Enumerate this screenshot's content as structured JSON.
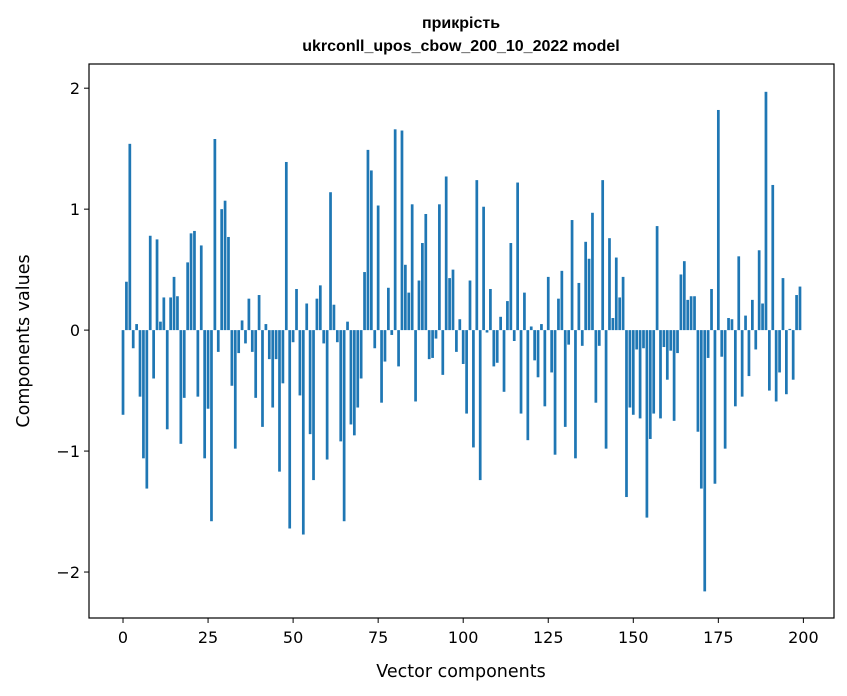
{
  "chart_data": {
    "type": "bar",
    "title": "прикрість",
    "subtitle": "ukrconll_upos_cbow_200_10_2022 model",
    "xlabel": "Vector components",
    "ylabel": "Components values",
    "xlim": [
      -10,
      209
    ],
    "ylim": [
      -2.38,
      2.2
    ],
    "x_ticks": [
      0,
      25,
      50,
      75,
      100,
      125,
      150,
      175,
      200
    ],
    "x_tick_labels": [
      "0",
      "25",
      "50",
      "75",
      "100",
      "125",
      "150",
      "175",
      "200"
    ],
    "y_ticks": [
      -2,
      -1,
      0,
      1,
      2
    ],
    "y_tick_labels": [
      "−2",
      "−1",
      "0",
      "1",
      "2"
    ],
    "grid": false,
    "bar_color": "#1f77b4",
    "values": [
      -0.7,
      0.4,
      1.54,
      -0.15,
      0.05,
      -0.55,
      -1.06,
      -1.31,
      0.78,
      -0.4,
      0.75,
      0.07,
      0.27,
      -0.82,
      0.27,
      0.44,
      0.28,
      -0.94,
      -0.56,
      0.56,
      0.8,
      0.82,
      -0.55,
      0.7,
      -1.06,
      -0.65,
      -1.58,
      1.58,
      -0.18,
      1.0,
      1.07,
      0.77,
      -0.46,
      -0.98,
      -0.19,
      0.08,
      -0.11,
      0.26,
      -0.18,
      -0.56,
      0.29,
      -0.8,
      0.05,
      -0.24,
      -0.64,
      -0.24,
      -1.17,
      -0.44,
      1.39,
      -1.64,
      -0.1,
      0.34,
      -0.54,
      -1.69,
      0.22,
      -0.86,
      -1.24,
      0.26,
      0.37,
      -0.11,
      -1.07,
      1.14,
      0.21,
      -0.1,
      -0.92,
      -1.58,
      0.07,
      -0.78,
      -0.87,
      -0.64,
      -0.4,
      0.48,
      1.49,
      1.32,
      -0.15,
      1.03,
      -0.6,
      -0.26,
      0.35,
      -0.04,
      1.66,
      -0.3,
      1.65,
      0.54,
      0.31,
      1.04,
      -0.59,
      0.41,
      0.72,
      0.96,
      -0.24,
      -0.23,
      -0.07,
      1.04,
      -0.37,
      1.27,
      0.43,
      0.5,
      -0.18,
      0.09,
      -0.28,
      -0.69,
      0.41,
      -0.97,
      1.24,
      -1.24,
      1.02,
      -0.02,
      0.34,
      -0.3,
      -0.27,
      0.11,
      -0.51,
      0.24,
      0.72,
      -0.09,
      1.22,
      -0.69,
      0.31,
      -0.91,
      0.03,
      -0.25,
      -0.39,
      0.05,
      -0.63,
      0.44,
      -0.35,
      -1.03,
      0.26,
      0.49,
      -0.8,
      -0.12,
      0.91,
      -1.06,
      0.39,
      -0.13,
      0.73,
      0.59,
      0.97,
      -0.6,
      -0.13,
      1.24,
      -0.98,
      0.76,
      0.1,
      0.6,
      0.27,
      0.44,
      -1.38,
      -0.64,
      -0.7,
      -0.16,
      -0.73,
      -0.15,
      -1.55,
      -0.9,
      -0.69,
      0.86,
      -0.73,
      -0.14,
      -0.41,
      -0.17,
      -0.75,
      -0.19,
      0.46,
      0.57,
      0.25,
      0.28,
      0.28,
      -0.84,
      -1.31,
      -2.16,
      -0.23,
      0.34,
      -1.27,
      1.82,
      -0.22,
      -0.98,
      0.1,
      0.09,
      -0.63,
      0.61,
      -0.55,
      0.12,
      -0.38,
      0.25,
      -0.16,
      0.66,
      0.22,
      1.97,
      -0.5,
      1.2,
      -0.59,
      -0.35,
      0.43,
      -0.53,
      0.01,
      -0.41,
      0.29,
      0.36
    ]
  }
}
